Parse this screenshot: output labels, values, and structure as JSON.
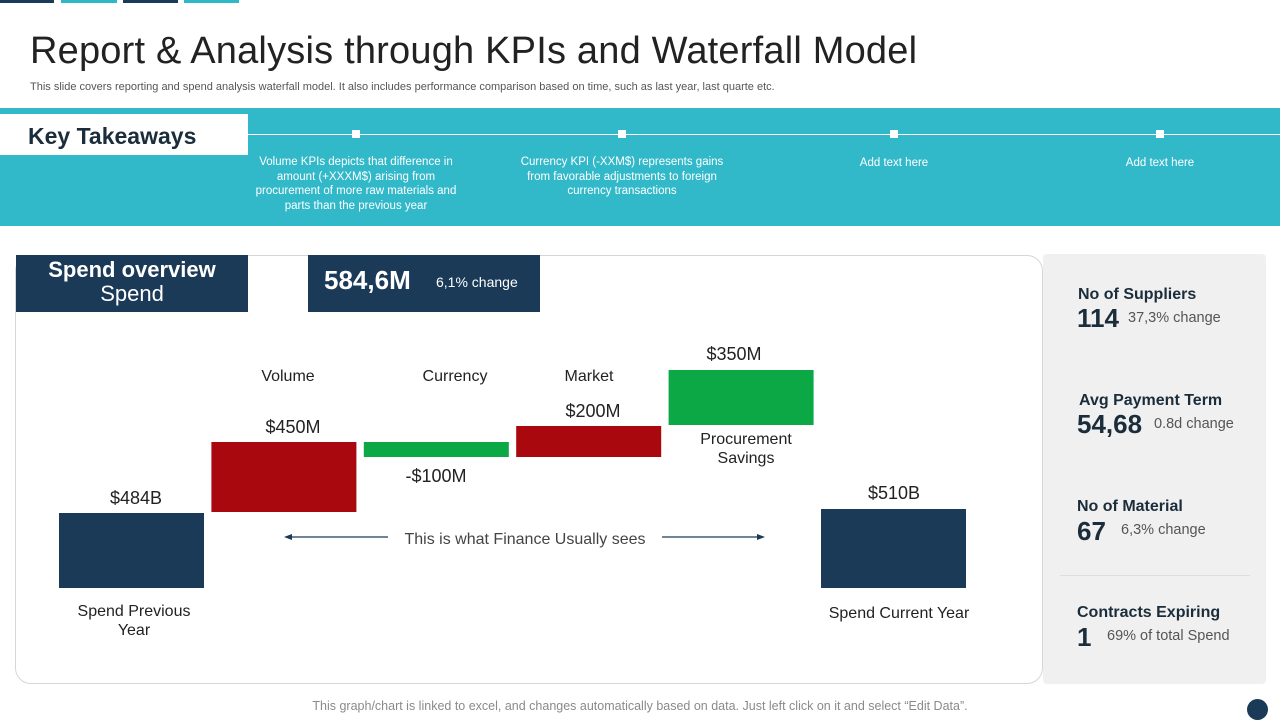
{
  "header": {
    "title": "Report & Analysis through KPIs and Waterfall Model",
    "subtitle": "This slide covers reporting and spend analysis waterfall model. It also includes performance comparison based on time, such as last year, last quarte etc."
  },
  "takeaways": {
    "label": "Key Takeaways",
    "items": [
      "Volume KPIs depicts that difference in amount (+XXXM$)  arising from procurement of more raw materials and parts than the previous year",
      "Currency KPI (-XXM$)  represents gains from favorable adjustments to foreign currency transactions",
      "Add text here",
      "Add text here"
    ]
  },
  "spend": {
    "title": "Spend overview",
    "subtitle": "Spend",
    "total": "584,6M",
    "change": "6,1% change"
  },
  "chart_data": {
    "type": "bar",
    "subtype": "waterfall",
    "categories": [
      "Spend Previous Year",
      "Volume",
      "Currency",
      "Market",
      "Procurement Savings",
      "Spend Current Year"
    ],
    "values": [
      484,
      450,
      -100,
      200,
      350,
      510
    ],
    "value_labels": [
      "$484B",
      "$450M",
      "-$100M",
      "$200M",
      "$350M",
      "$510B"
    ],
    "category_labels": {
      "top": [
        "",
        "Volume",
        "Currency",
        "Market",
        "",
        ""
      ],
      "bottom": [
        "Spend Previous Year",
        "",
        "",
        "",
        "Procurement Savings",
        "Spend Current Year"
      ]
    },
    "bar_colors": [
      "#1b3a57",
      "#a8080e",
      "#0ba845",
      "#a8080e",
      "#0ba845",
      "#1b3a57"
    ],
    "annotation": "This is what Finance Usually sees",
    "legend": "none",
    "grid": false
  },
  "kpis": [
    {
      "label": "No of Suppliers",
      "value": "114",
      "change": "37,3% change"
    },
    {
      "label": "Avg Payment Term",
      "value": "54,68",
      "change": "0.8d change"
    },
    {
      "label": "No of Material",
      "value": "67",
      "change": "6,3% change"
    },
    {
      "label": "Contracts Expiring",
      "value": "1",
      "change": "69% of total Spend"
    }
  ],
  "footer": {
    "note": "This graph/chart is linked to excel, and changes automatically based on data. Just left click on it and select “Edit Data”."
  },
  "colors": {
    "navy": "#1b3a57",
    "teal": "#32b9c9",
    "red": "#a8080e",
    "green": "#0ba845"
  }
}
